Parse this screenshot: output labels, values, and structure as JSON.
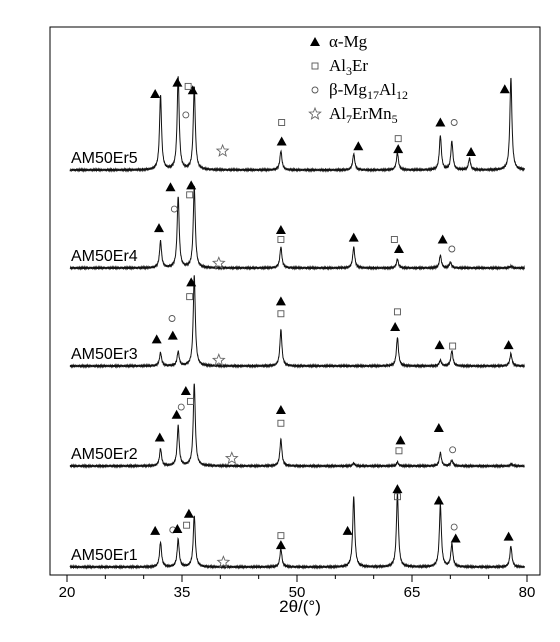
{
  "chart_data": {
    "type": "line",
    "title": "",
    "xlabel": "2θ/(°)",
    "ylabel": "",
    "xlim": [
      20,
      80
    ],
    "x_ticks": [
      20,
      35,
      50,
      65,
      80
    ],
    "grid": false,
    "legend_placement": "top-right",
    "legend": [
      {
        "marker": "filled-triangle",
        "name": "α-Mg",
        "parts": [
          [
            "α-Mg",
            ""
          ]
        ]
      },
      {
        "marker": "open-square",
        "name": "Al3Er",
        "parts": [
          [
            "Al",
            ""
          ],
          [
            "3",
            "sub"
          ],
          [
            "Er",
            ""
          ]
        ]
      },
      {
        "marker": "open-circle",
        "name": "β-Mg17Al12",
        "parts": [
          [
            "β-Mg",
            ""
          ],
          [
            "17",
            "sub"
          ],
          [
            "Al",
            ""
          ],
          [
            "12",
            "sub"
          ]
        ]
      },
      {
        "marker": "open-star",
        "name": "Al7ErMn5",
        "parts": [
          [
            "Al",
            ""
          ],
          [
            "7",
            "sub"
          ],
          [
            "ErMn",
            ""
          ],
          [
            "5",
            "sub"
          ]
        ]
      }
    ],
    "series": [
      {
        "name": "AM50Er5",
        "peaks": [
          [
            32.2,
            0.78
          ],
          [
            34.5,
            0.98
          ],
          [
            36.6,
            0.87
          ],
          [
            47.9,
            0.2
          ],
          [
            57.4,
            0.17
          ],
          [
            63.1,
            0.18
          ],
          [
            68.7,
            0.36
          ],
          [
            70.2,
            0.3
          ],
          [
            72.5,
            0.12
          ],
          [
            77.9,
            0.97
          ]
        ],
        "markers": [
          {
            "type": "filled-triangle",
            "x": 31.5,
            "h": 0.8
          },
          {
            "type": "filled-triangle",
            "x": 34.4,
            "h": 0.92
          },
          {
            "type": "filled-triangle",
            "x": 36.4,
            "h": 0.84
          },
          {
            "type": "open-square",
            "x": 35.8,
            "h": 0.88
          },
          {
            "type": "open-circle",
            "x": 35.5,
            "h": 0.58
          },
          {
            "type": "open-star",
            "x": 40.3,
            "h": 0.2
          },
          {
            "type": "open-square",
            "x": 48.0,
            "h": 0.5
          },
          {
            "type": "filled-triangle",
            "x": 48.0,
            "h": 0.3
          },
          {
            "type": "filled-triangle",
            "x": 58.0,
            "h": 0.25
          },
          {
            "type": "open-square",
            "x": 63.2,
            "h": 0.33
          },
          {
            "type": "filled-triangle",
            "x": 63.2,
            "h": 0.22
          },
          {
            "type": "filled-triangle",
            "x": 68.7,
            "h": 0.5
          },
          {
            "type": "open-circle",
            "x": 70.5,
            "h": 0.5
          },
          {
            "type": "filled-triangle",
            "x": 72.7,
            "h": 0.19
          },
          {
            "type": "filled-triangle",
            "x": 77.1,
            "h": 0.85
          }
        ]
      },
      {
        "name": "AM50Er4",
        "peaks": [
          [
            32.2,
            0.28
          ],
          [
            34.5,
            0.75
          ],
          [
            36.6,
            0.85
          ],
          [
            47.9,
            0.22
          ],
          [
            57.4,
            0.22
          ],
          [
            63.1,
            0.09
          ],
          [
            68.7,
            0.13
          ],
          [
            70.0,
            0.06
          ],
          [
            77.9,
            0.02
          ]
        ],
        "markers": [
          {
            "type": "filled-triangle",
            "x": 32.0,
            "h": 0.42
          },
          {
            "type": "filled-triangle",
            "x": 33.5,
            "h": 0.85
          },
          {
            "type": "open-circle",
            "x": 34.0,
            "h": 0.62
          },
          {
            "type": "filled-triangle",
            "x": 36.2,
            "h": 0.87
          },
          {
            "type": "open-square",
            "x": 36.0,
            "h": 0.77
          },
          {
            "type": "open-star",
            "x": 39.8,
            "h": 0.05
          },
          {
            "type": "filled-triangle",
            "x": 47.9,
            "h": 0.4
          },
          {
            "type": "open-square",
            "x": 47.9,
            "h": 0.3
          },
          {
            "type": "filled-triangle",
            "x": 57.4,
            "h": 0.32
          },
          {
            "type": "open-square",
            "x": 62.7,
            "h": 0.3
          },
          {
            "type": "filled-triangle",
            "x": 63.3,
            "h": 0.2
          },
          {
            "type": "filled-triangle",
            "x": 69.0,
            "h": 0.3
          },
          {
            "type": "open-circle",
            "x": 70.2,
            "h": 0.2
          }
        ]
      },
      {
        "name": "AM50Er3",
        "peaks": [
          [
            32.2,
            0.14
          ],
          [
            34.5,
            0.15
          ],
          [
            36.6,
            0.95
          ],
          [
            47.9,
            0.38
          ],
          [
            63.1,
            0.3
          ],
          [
            68.7,
            0.06
          ],
          [
            70.2,
            0.16
          ],
          [
            77.9,
            0.13
          ]
        ],
        "markers": [
          {
            "type": "filled-triangle",
            "x": 31.7,
            "h": 0.28
          },
          {
            "type": "open-circle",
            "x": 33.7,
            "h": 0.5
          },
          {
            "type": "filled-triangle",
            "x": 33.8,
            "h": 0.32
          },
          {
            "type": "filled-triangle",
            "x": 36.2,
            "h": 0.88
          },
          {
            "type": "open-square",
            "x": 36.0,
            "h": 0.73
          },
          {
            "type": "open-star",
            "x": 39.8,
            "h": 0.06
          },
          {
            "type": "filled-triangle",
            "x": 47.9,
            "h": 0.68
          },
          {
            "type": "open-square",
            "x": 47.9,
            "h": 0.55
          },
          {
            "type": "open-square",
            "x": 63.1,
            "h": 0.57
          },
          {
            "type": "filled-triangle",
            "x": 62.8,
            "h": 0.41
          },
          {
            "type": "filled-triangle",
            "x": 68.6,
            "h": 0.22
          },
          {
            "type": "open-square",
            "x": 70.3,
            "h": 0.21
          },
          {
            "type": "filled-triangle",
            "x": 77.6,
            "h": 0.22
          }
        ]
      },
      {
        "name": "AM50Er2",
        "peaks": [
          [
            32.2,
            0.18
          ],
          [
            34.5,
            0.42
          ],
          [
            36.6,
            0.87
          ],
          [
            47.9,
            0.28
          ],
          [
            57.4,
            0.03
          ],
          [
            63.1,
            0.04
          ],
          [
            68.7,
            0.14
          ],
          [
            70.2,
            0.06
          ],
          [
            78.0,
            0.02
          ]
        ],
        "markers": [
          {
            "type": "filled-triangle",
            "x": 32.1,
            "h": 0.3
          },
          {
            "type": "filled-triangle",
            "x": 34.3,
            "h": 0.54
          },
          {
            "type": "open-circle",
            "x": 34.9,
            "h": 0.62
          },
          {
            "type": "filled-triangle",
            "x": 35.5,
            "h": 0.79
          },
          {
            "type": "open-square",
            "x": 36.1,
            "h": 0.68
          },
          {
            "type": "open-star",
            "x": 41.5,
            "h": 0.08
          },
          {
            "type": "filled-triangle",
            "x": 47.9,
            "h": 0.59
          },
          {
            "type": "open-square",
            "x": 47.9,
            "h": 0.45
          },
          {
            "type": "filled-triangle",
            "x": 63.5,
            "h": 0.27
          },
          {
            "type": "open-square",
            "x": 63.3,
            "h": 0.16
          },
          {
            "type": "filled-triangle",
            "x": 68.5,
            "h": 0.4
          },
          {
            "type": "open-circle",
            "x": 70.3,
            "h": 0.17
          }
        ]
      },
      {
        "name": "AM50Er1",
        "peaks": [
          [
            32.2,
            0.26
          ],
          [
            34.5,
            0.29
          ],
          [
            36.6,
            0.54
          ],
          [
            47.9,
            0.19
          ],
          [
            57.4,
            0.74
          ],
          [
            63.1,
            0.77
          ],
          [
            68.7,
            0.65
          ],
          [
            70.2,
            0.24
          ],
          [
            77.9,
            0.22
          ]
        ],
        "markers": [
          {
            "type": "filled-triangle",
            "x": 31.5,
            "h": 0.38
          },
          {
            "type": "open-circle",
            "x": 33.8,
            "h": 0.39
          },
          {
            "type": "filled-triangle",
            "x": 34.4,
            "h": 0.4
          },
          {
            "type": "open-square",
            "x": 35.6,
            "h": 0.44
          },
          {
            "type": "filled-triangle",
            "x": 35.9,
            "h": 0.56
          },
          {
            "type": "open-star",
            "x": 40.4,
            "h": 0.05
          },
          {
            "type": "open-square",
            "x": 47.9,
            "h": 0.33
          },
          {
            "type": "filled-triangle",
            "x": 47.9,
            "h": 0.23
          },
          {
            "type": "filled-triangle",
            "x": 56.6,
            "h": 0.38
          },
          {
            "type": "filled-triangle",
            "x": 63.1,
            "h": 0.82
          },
          {
            "type": "open-square",
            "x": 63.1,
            "h": 0.74
          },
          {
            "type": "filled-triangle",
            "x": 68.5,
            "h": 0.7
          },
          {
            "type": "open-circle",
            "x": 70.5,
            "h": 0.42
          },
          {
            "type": "filled-triangle",
            "x": 70.7,
            "h": 0.3
          },
          {
            "type": "filled-triangle",
            "x": 77.6,
            "h": 0.32
          }
        ]
      }
    ]
  }
}
